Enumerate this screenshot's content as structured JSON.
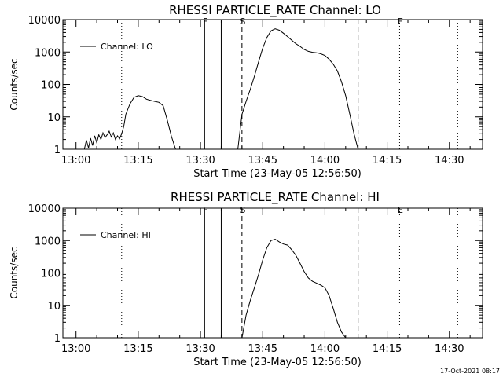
{
  "footer": {
    "timestamp": "17-Oct-2021 08:17"
  },
  "chart_data": [
    {
      "type": "line",
      "title": "RHESSI PARTICLE_RATE Channel: LO",
      "xlabel": "Start Time (23-May-05 12:56:50)",
      "ylabel": "Counts/sec",
      "legend": {
        "label": "Channel: LO",
        "position": "top-left"
      },
      "y_scale": "log",
      "ylim": [
        1,
        10000
      ],
      "xlim": [
        "12:56:50",
        "14:38:00"
      ],
      "x_ticks": [
        "13:00",
        "13:15",
        "13:30",
        "13:45",
        "14:00",
        "14:15",
        "14:30"
      ],
      "y_ticks": [
        "1",
        "10",
        "100",
        "1000",
        "10000"
      ],
      "markers": [
        {
          "label": "F",
          "time": "13:31",
          "style": "solid"
        },
        {
          "label": "",
          "time": "13:35",
          "style": "solid"
        },
        {
          "label": "S",
          "time": "13:40",
          "style": "dashed"
        },
        {
          "label": "",
          "time": "14:08",
          "style": "dashed"
        },
        {
          "label": "E",
          "time": "14:18",
          "style": "dotted"
        },
        {
          "label": "",
          "time": "13:11",
          "style": "dotted"
        },
        {
          "label": "",
          "time": "14:32",
          "style": "dotted"
        }
      ],
      "series": [
        {
          "name": "Channel: LO",
          "segments": [
            {
              "x": [
                "13:02",
                "13:02.5",
                "13:03",
                "13:03.5",
                "13:04",
                "13:04.5",
                "13:05",
                "13:05.5",
                "13:06",
                "13:06.5",
                "13:07",
                "13:07.5",
                "13:08",
                "13:08.5",
                "13:09",
                "13:09.5",
                "13:10",
                "13:10.5",
                "13:11",
                "13:11.5",
                "13:12",
                "13:13",
                "13:14",
                "13:15",
                "13:16",
                "13:17",
                "13:18",
                "13:19",
                "13:20",
                "13:21",
                "13:22",
                "13:23",
                "13:24"
              ],
              "y": [
                1,
                1.9,
                1.1,
                2.2,
                1.3,
                2.6,
                1.6,
                2.8,
                2.0,
                3.2,
                2.3,
                2.8,
                3.6,
                2.4,
                3.2,
                2.0,
                2.6,
                2.1,
                3.0,
                5,
                12,
                25,
                40,
                45,
                42,
                35,
                32,
                30,
                28,
                22,
                8,
                2.5,
                1
              ]
            },
            {
              "x": [
                "13:39",
                "13:40",
                "13:41",
                "13:42",
                "13:43",
                "13:44",
                "13:45",
                "13:46",
                "13:47",
                "13:48",
                "13:49",
                "13:50",
                "13:51",
                "13:52",
                "13:53",
                "13:54",
                "13:55",
                "13:56",
                "13:57",
                "13:58",
                "13:59",
                "14:00",
                "14:01",
                "14:02",
                "14:03",
                "14:04",
                "14:05",
                "14:06",
                "14:07",
                "14:08"
              ],
              "y": [
                1,
                12,
                30,
                70,
                180,
                500,
                1300,
                2800,
                4500,
                5200,
                4700,
                3800,
                3000,
                2300,
                1800,
                1500,
                1200,
                1050,
                980,
                950,
                880,
                780,
                600,
                420,
                260,
                120,
                45,
                12,
                3,
                1
              ]
            }
          ]
        }
      ]
    },
    {
      "type": "line",
      "title": "RHESSI PARTICLE_RATE Channel: HI",
      "xlabel": "Start Time (23-May-05 12:56:50)",
      "ylabel": "Counts/sec",
      "legend": {
        "label": "Channel: HI",
        "position": "top-left"
      },
      "y_scale": "log",
      "ylim": [
        1,
        10000
      ],
      "xlim": [
        "12:56:50",
        "14:38:00"
      ],
      "x_ticks": [
        "13:00",
        "13:15",
        "13:30",
        "13:45",
        "14:00",
        "14:15",
        "14:30"
      ],
      "y_ticks": [
        "1",
        "10",
        "100",
        "1000",
        "10000"
      ],
      "markers": [
        {
          "label": "F",
          "time": "13:31",
          "style": "solid"
        },
        {
          "label": "",
          "time": "13:35",
          "style": "solid"
        },
        {
          "label": "S",
          "time": "13:40",
          "style": "dashed"
        },
        {
          "label": "",
          "time": "14:08",
          "style": "dashed"
        },
        {
          "label": "E",
          "time": "14:18",
          "style": "dotted"
        },
        {
          "label": "",
          "time": "13:11",
          "style": "dotted"
        },
        {
          "label": "",
          "time": "14:32",
          "style": "dotted"
        }
      ],
      "series": [
        {
          "name": "Channel: HI",
          "segments": [
            {
              "x": [
                "13:40",
                "13:41",
                "13:42",
                "13:43",
                "13:44",
                "13:45",
                "13:46",
                "13:47",
                "13:48",
                "13:49",
                "13:50",
                "13:51",
                "13:52",
                "13:53",
                "13:54",
                "13:55",
                "13:56",
                "13:57",
                "13:58",
                "13:59",
                "14:00",
                "14:01",
                "14:02",
                "14:03",
                "14:04",
                "14:05"
              ],
              "y": [
                1,
                5,
                14,
                35,
                90,
                250,
                600,
                1000,
                1100,
                900,
                780,
                720,
                520,
                350,
                200,
                110,
                70,
                55,
                48,
                42,
                35,
                20,
                8,
                3,
                1.5,
                1
              ]
            }
          ]
        }
      ]
    }
  ]
}
